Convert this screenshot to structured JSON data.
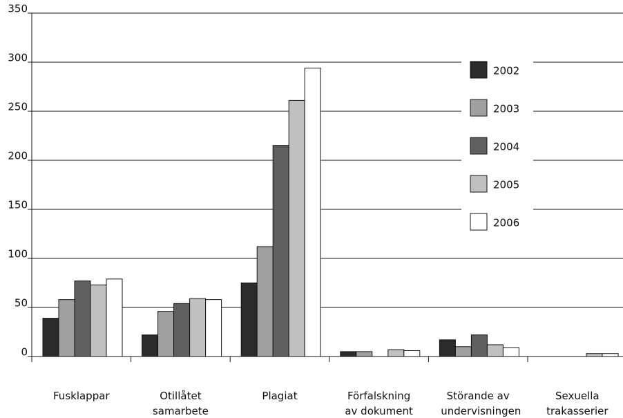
{
  "chart_data": {
    "type": "bar",
    "categories": [
      "Fusklappar",
      "Otillåtet samarbete",
      "Plagiat",
      "Förfalskning av dokument",
      "Störande av undervisningen",
      "Sexuella trakasserier"
    ],
    "series": [
      {
        "name": "2002",
        "color": "#2b2b2b",
        "values": [
          39,
          22,
          75,
          5,
          17,
          0
        ]
      },
      {
        "name": "2003",
        "color": "#a0a0a0",
        "values": [
          58,
          46,
          112,
          5,
          10,
          0
        ]
      },
      {
        "name": "2004",
        "color": "#606060",
        "values": [
          77,
          54,
          215,
          0,
          22,
          0
        ]
      },
      {
        "name": "2005",
        "color": "#c0c0c0",
        "values": [
          73,
          59,
          261,
          7,
          12,
          3
        ]
      },
      {
        "name": "2006",
        "color": "#ffffff",
        "values": [
          79,
          58,
          294,
          6,
          9,
          3
        ]
      }
    ],
    "ylim": [
      0,
      350
    ],
    "yticks": [
      0,
      50,
      100,
      150,
      200,
      250,
      300,
      350
    ],
    "grid": true,
    "legend": "right"
  }
}
